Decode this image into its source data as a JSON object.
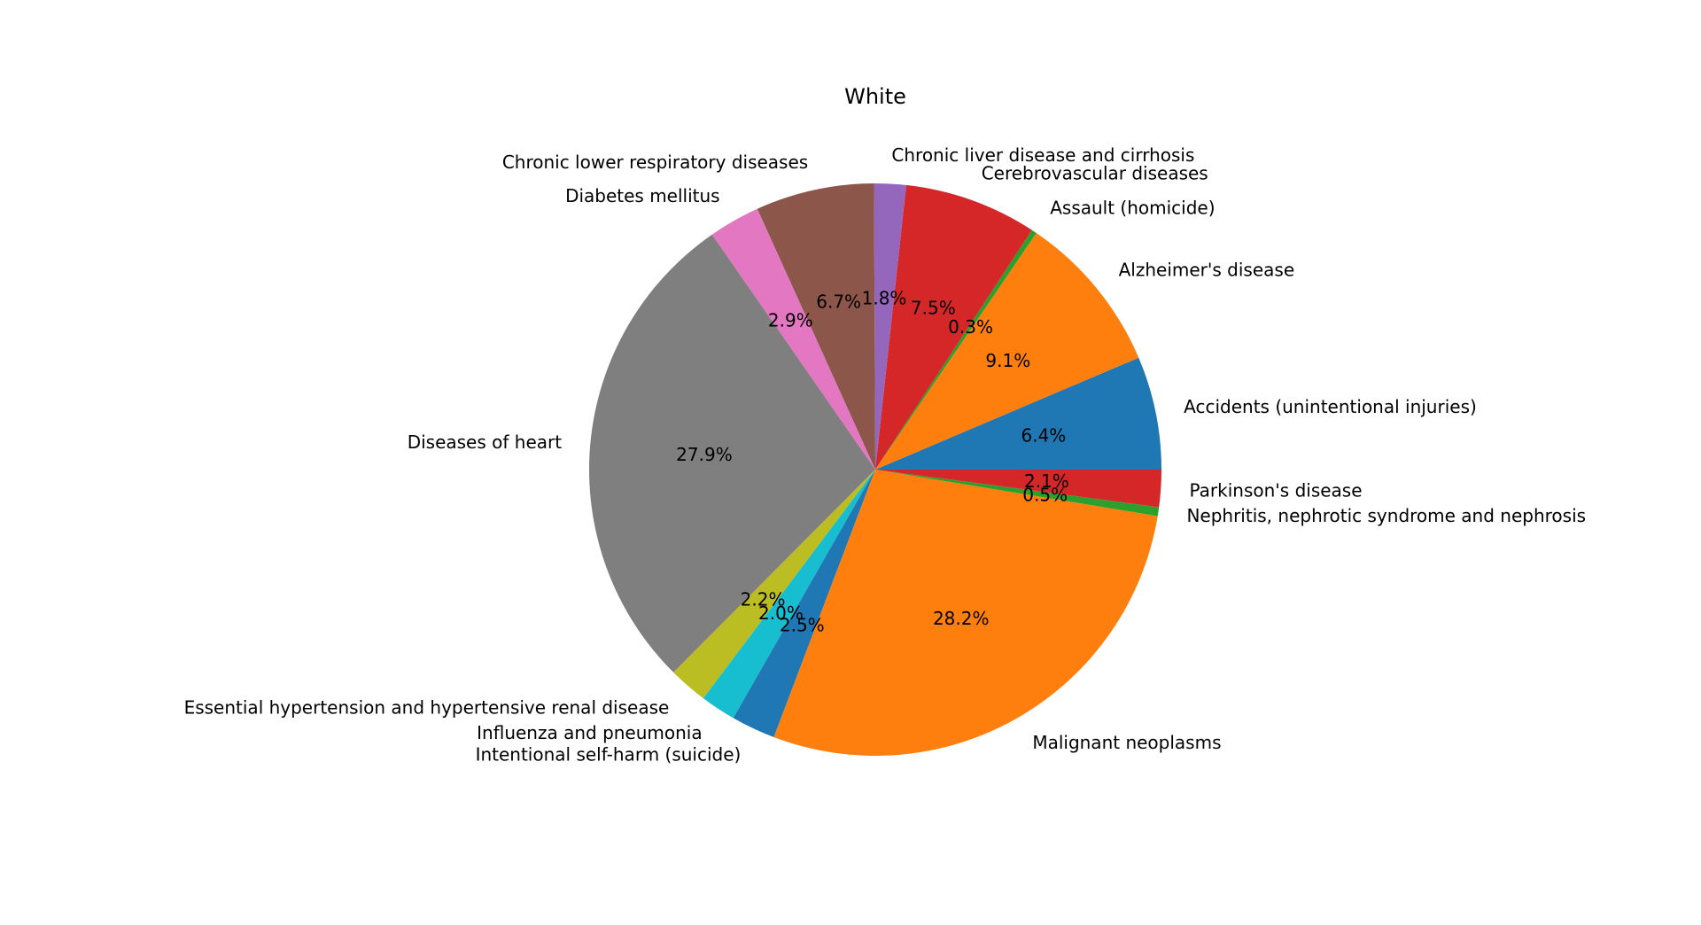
{
  "chart_data": {
    "type": "pie",
    "title": "White",
    "start_angle_deg": 0,
    "direction": "counterclockwise",
    "slices": [
      {
        "label": "Accidents (unintentional injuries)",
        "value": 6.4,
        "pct_label": "6.4%",
        "color": "#1f77b4"
      },
      {
        "label": "Alzheimer's disease",
        "value": 9.1,
        "pct_label": "9.1%",
        "color": "#ff7f0e"
      },
      {
        "label": "Assault (homicide)",
        "value": 0.3,
        "pct_label": "0.3%",
        "color": "#2ca02c"
      },
      {
        "label": "Cerebrovascular diseases",
        "value": 7.5,
        "pct_label": "7.5%",
        "color": "#d62728"
      },
      {
        "label": "Chronic liver disease and cirrhosis",
        "value": 1.8,
        "pct_label": "1.8%",
        "color": "#9467bd"
      },
      {
        "label": "Chronic lower respiratory diseases",
        "value": 6.7,
        "pct_label": "6.7%",
        "color": "#8c564b"
      },
      {
        "label": "Diabetes mellitus",
        "value": 2.9,
        "pct_label": "2.9%",
        "color": "#e377c2"
      },
      {
        "label": "Diseases of heart",
        "value": 27.9,
        "pct_label": "27.9%",
        "color": "#7f7f7f"
      },
      {
        "label": "Essential hypertension and hypertensive renal disease",
        "value": 2.2,
        "pct_label": "2.2%",
        "color": "#bcbd22"
      },
      {
        "label": "Influenza and pneumonia",
        "value": 2.0,
        "pct_label": "2.0%",
        "color": "#17becf"
      },
      {
        "label": "Intentional self-harm (suicide)",
        "value": 2.5,
        "pct_label": "2.5%",
        "color": "#1f77b4"
      },
      {
        "label": "Malignant neoplasms",
        "value": 28.2,
        "pct_label": "28.2%",
        "color": "#ff7f0e"
      },
      {
        "label": "Nephritis, nephrotic syndrome and nephrosis",
        "value": 0.5,
        "pct_label": "0.5%",
        "color": "#2ca02c"
      },
      {
        "label": "Parkinson's disease",
        "value": 2.1,
        "pct_label": "2.1%",
        "color": "#d62728"
      }
    ]
  }
}
